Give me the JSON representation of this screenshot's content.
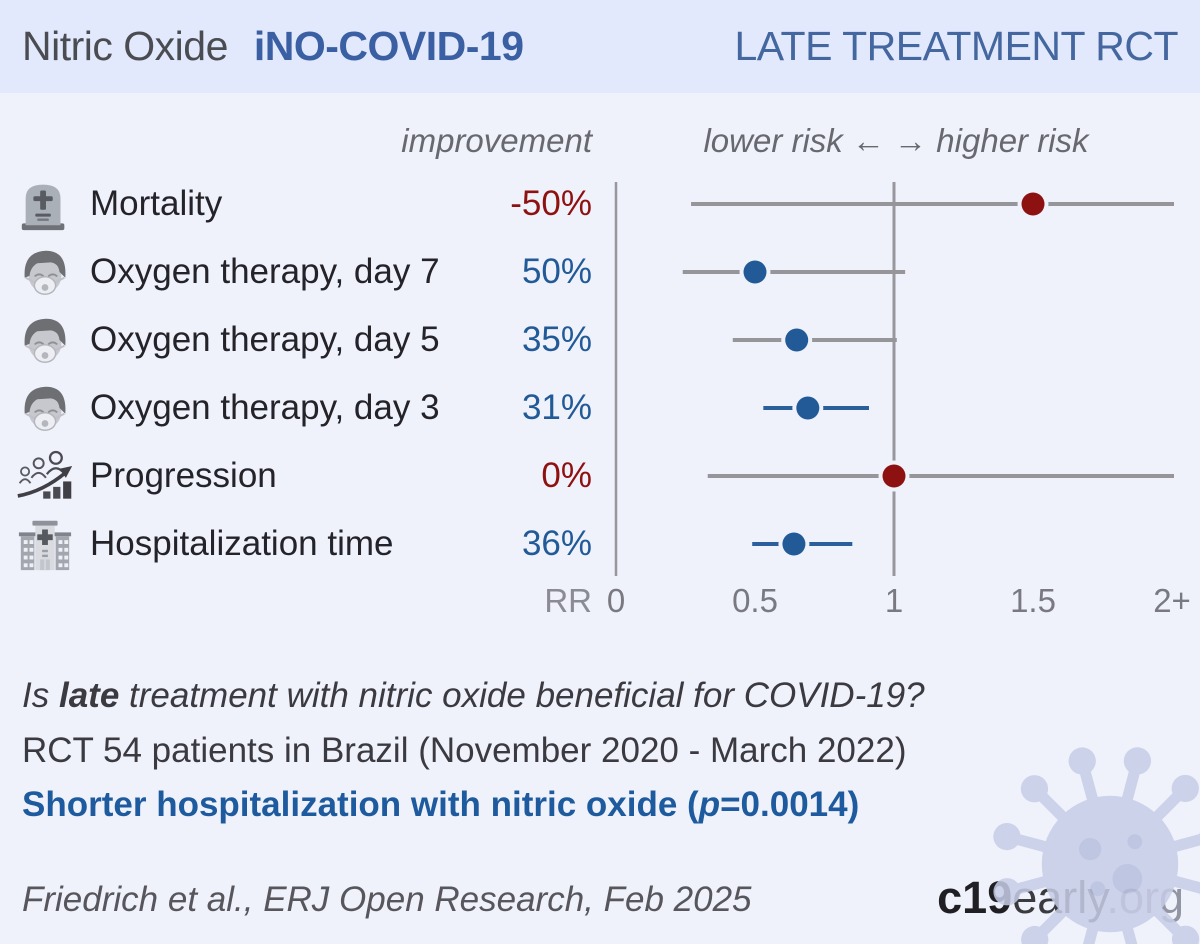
{
  "header": {
    "product": "Nitric Oxide",
    "study": "iNO-COVID-19",
    "category": "LATE TREATMENT RCT"
  },
  "plot_headers": {
    "improvement": "improvement",
    "risk": "lower risk ← → higher risk"
  },
  "chart_data": {
    "type": "scatter",
    "subtype": "forest-plot",
    "title": "iNO-COVID-19 late treatment RCT outcomes, relative risk with confidence intervals",
    "axis": {
      "title": "RR",
      "ticks": [
        {
          "label": "0",
          "value": 0
        },
        {
          "label": "0.5",
          "value": 0.5
        },
        {
          "label": "1",
          "value": 1
        },
        {
          "label": "1.5",
          "value": 1.5
        },
        {
          "label": "2+",
          "value": 2
        }
      ],
      "xlim": [
        0,
        2
      ],
      "reference_line": 1,
      "zero_line": 0
    },
    "rows": [
      {
        "icon": "tombstone",
        "label": "Mortality",
        "improvement": "-50%",
        "rr": 1.5,
        "ci_low": 0.27,
        "ci_high": 2.0,
        "ci_high_clipped": true,
        "color": "#8e1111",
        "whisker_color": "#95959a"
      },
      {
        "icon": "oxygen-mask",
        "label": "Oxygen therapy, day 7",
        "improvement": "50%",
        "rr": 0.5,
        "ci_low": 0.24,
        "ci_high": 1.04,
        "ci_high_clipped": false,
        "color": "#215a97",
        "whisker_color": "#95959a"
      },
      {
        "icon": "oxygen-mask",
        "label": "Oxygen therapy, day 5",
        "improvement": "35%",
        "rr": 0.65,
        "ci_low": 0.42,
        "ci_high": 1.01,
        "ci_high_clipped": false,
        "color": "#215a97",
        "whisker_color": "#95959a"
      },
      {
        "icon": "oxygen-mask",
        "label": "Oxygen therapy, day 3",
        "improvement": "31%",
        "rr": 0.69,
        "ci_low": 0.53,
        "ci_high": 0.91,
        "ci_high_clipped": false,
        "color": "#215a97",
        "whisker_color": "#2a5f9c"
      },
      {
        "icon": "progression",
        "label": "Progression",
        "improvement": "0%",
        "rr": 1.0,
        "ci_low": 0.33,
        "ci_high": 2.0,
        "ci_high_clipped": true,
        "color": "#8e1111",
        "whisker_color": "#95959a"
      },
      {
        "icon": "hospital",
        "label": "Hospitalization time",
        "improvement": "36%",
        "rr": 0.64,
        "ci_low": 0.49,
        "ci_high": 0.85,
        "ci_high_clipped": false,
        "color": "#215a97",
        "whisker_color": "#2a5f9c"
      }
    ]
  },
  "summary": {
    "question": {
      "prefix": "Is",
      "bold": "late",
      "suffix": "treatment with nitric oxide beneficial for COVID-19?"
    },
    "population": "RCT 54 patients in Brazil (November 2020 - March 2022)",
    "finding": {
      "text": "Shorter hospitalization with nitric oxide (",
      "p": "p",
      "value": "=0.0014)"
    }
  },
  "footer": {
    "citation": "Friedrich et al., ERJ Open Research, Feb 2025",
    "logo": {
      "bold": "c19",
      "regular": "early",
      "org": ".org"
    }
  },
  "colors": {
    "benefit_blue": "#215a97",
    "harm_red": "#8e1111",
    "whisker_gray": "#95959a",
    "axis_gray": "#97979d",
    "result_blue": "#1d5b9e",
    "header_band": "#e3e9fc",
    "background": "#eff1fb"
  }
}
